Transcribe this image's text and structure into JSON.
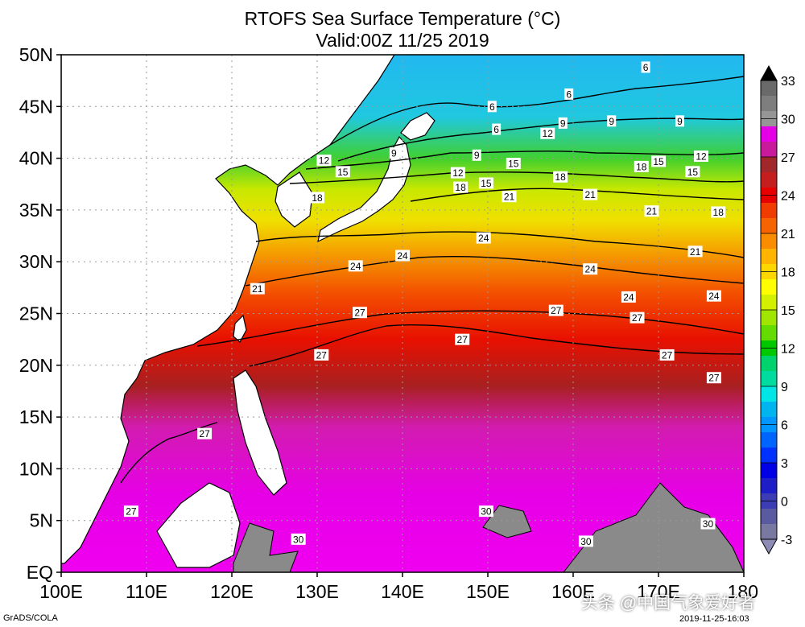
{
  "header": {
    "title": "RTOFS Sea Surface Temperature (°C)",
    "valid": "Valid:00Z 11/25 2019"
  },
  "axes": {
    "lat_labels": [
      "50N",
      "45N",
      "40N",
      "35N",
      "30N",
      "25N",
      "20N",
      "15N",
      "10N",
      "5N",
      "EQ"
    ],
    "lon_labels": [
      "100E",
      "110E",
      "120E",
      "130E",
      "140E",
      "150E",
      "160E",
      "170E",
      "180"
    ]
  },
  "map_extent": {
    "lon": [
      100,
      180
    ],
    "lat": [
      0,
      50
    ]
  },
  "colorbar": {
    "labels": [
      "33",
      "30",
      "27",
      "24",
      "21",
      "18",
      "15",
      "12",
      "9",
      "6",
      "3",
      "0",
      "-3"
    ],
    "colors": [
      "#6a6a6a",
      "#7e7e7e",
      "#969696",
      "#e600e6",
      "#c81a9a",
      "#a0282a",
      "#c41e1e",
      "#e60000",
      "#f03c00",
      "#f56400",
      "#fa8c00",
      "#ffb400",
      "#ffd700",
      "#ffff00",
      "#d2f000",
      "#a0e600",
      "#64dc00",
      "#00c800",
      "#00d26e",
      "#00dca0",
      "#00e6e6",
      "#00b4f0",
      "#0096ff",
      "#0064ff",
      "#0032ff",
      "#0000e6",
      "#1e1ec8",
      "#3c3cb4",
      "#5a5aa0",
      "#7878a0"
    ]
  },
  "chart_data": {
    "type": "heatmap",
    "title": "RTOFS Sea Surface Temperature (°C)",
    "subtitle": "Valid:00Z 11/25 2019",
    "x_range": [
      100,
      180
    ],
    "y_range": [
      0,
      50
    ],
    "color_scale_range": [
      -3,
      33
    ],
    "isotherm_labels": [
      {
        "value": "6",
        "lon": 168.5,
        "lat": 48.8
      },
      {
        "value": "6",
        "lon": 159.5,
        "lat": 46.2
      },
      {
        "value": "6",
        "lon": 150.5,
        "lat": 45.0
      },
      {
        "value": "6",
        "lon": 151.0,
        "lat": 42.8
      },
      {
        "value": "9",
        "lon": 139.0,
        "lat": 40.5
      },
      {
        "value": "9",
        "lon": 148.7,
        "lat": 40.3
      },
      {
        "value": "9",
        "lon": 158.8,
        "lat": 43.4
      },
      {
        "value": "9",
        "lon": 164.5,
        "lat": 43.6
      },
      {
        "value": "9",
        "lon": 172.5,
        "lat": 43.6
      },
      {
        "value": "12",
        "lon": 130.8,
        "lat": 39.8
      },
      {
        "value": "12",
        "lon": 157.0,
        "lat": 42.4
      },
      {
        "value": "12",
        "lon": 146.5,
        "lat": 38.6
      },
      {
        "value": "12",
        "lon": 175.0,
        "lat": 40.2
      },
      {
        "value": "15",
        "lon": 133.0,
        "lat": 38.7
      },
      {
        "value": "15",
        "lon": 153.0,
        "lat": 39.5
      },
      {
        "value": "15",
        "lon": 149.8,
        "lat": 37.6
      },
      {
        "value": "15",
        "lon": 174.0,
        "lat": 38.7
      },
      {
        "value": "18",
        "lon": 130.0,
        "lat": 36.2
      },
      {
        "value": "18",
        "lon": 146.8,
        "lat": 37.2
      },
      {
        "value": "18",
        "lon": 158.5,
        "lat": 38.2
      },
      {
        "value": "18",
        "lon": 168.0,
        "lat": 39.2
      },
      {
        "value": "15",
        "lon": 170.0,
        "lat": 39.7
      },
      {
        "value": "18",
        "lon": 177.0,
        "lat": 34.8
      },
      {
        "value": "21",
        "lon": 152.5,
        "lat": 36.3
      },
      {
        "value": "21",
        "lon": 162.0,
        "lat": 36.5
      },
      {
        "value": "21",
        "lon": 169.2,
        "lat": 34.9
      },
      {
        "value": "21",
        "lon": 174.3,
        "lat": 31.0
      },
      {
        "value": "21",
        "lon": 123.0,
        "lat": 27.4
      },
      {
        "value": "24",
        "lon": 134.5,
        "lat": 29.6
      },
      {
        "value": "24",
        "lon": 140.0,
        "lat": 30.6
      },
      {
        "value": "24",
        "lon": 149.5,
        "lat": 32.3
      },
      {
        "value": "24",
        "lon": 162.0,
        "lat": 29.3
      },
      {
        "value": "24",
        "lon": 166.5,
        "lat": 26.6
      },
      {
        "value": "24",
        "lon": 176.5,
        "lat": 26.7
      },
      {
        "value": "27",
        "lon": 135.0,
        "lat": 25.1
      },
      {
        "value": "27",
        "lon": 147.0,
        "lat": 22.5
      },
      {
        "value": "27",
        "lon": 130.5,
        "lat": 21.0
      },
      {
        "value": "27",
        "lon": 158.0,
        "lat": 25.3
      },
      {
        "value": "27",
        "lon": 167.5,
        "lat": 24.6
      },
      {
        "value": "27",
        "lon": 171.0,
        "lat": 21.0
      },
      {
        "value": "27",
        "lon": 176.5,
        "lat": 18.8
      },
      {
        "value": "27",
        "lon": 116.8,
        "lat": 13.4
      },
      {
        "value": "27",
        "lon": 108.2,
        "lat": 5.9
      },
      {
        "value": "30",
        "lon": 149.8,
        "lat": 5.9
      },
      {
        "value": "30",
        "lon": 127.8,
        "lat": 3.2
      },
      {
        "value": "30",
        "lon": 161.5,
        "lat": 3.0
      },
      {
        "value": "30",
        "lon": 175.8,
        "lat": 4.7
      }
    ]
  },
  "footer": {
    "credit": "GrADS/COLA",
    "timestamp": "2019-11-25-16:03",
    "watermark": "头条 @中国气象爱好者"
  }
}
